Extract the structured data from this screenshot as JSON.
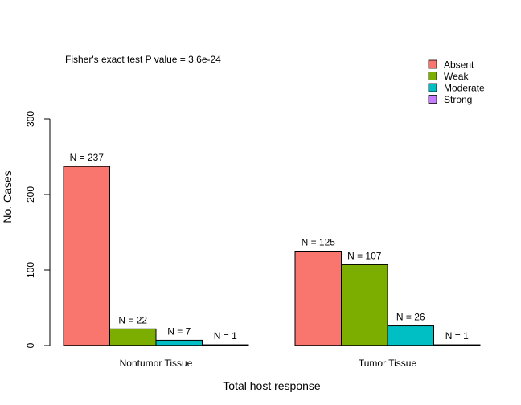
{
  "chart_data": {
    "type": "bar",
    "annotation": "Fisher's exact test P value = 3.6e-24",
    "xlabel": "Total host response",
    "ylabel": "No. Cases",
    "ylim": [
      0,
      300
    ],
    "yticks": [
      0,
      100,
      200,
      300
    ],
    "categories": [
      "Nontumor Tissue",
      "Tumor Tissue"
    ],
    "series": [
      {
        "name": "Absent",
        "color": "#f8766d",
        "values": [
          237,
          125
        ],
        "labels": [
          "N = 237",
          "N = 125"
        ]
      },
      {
        "name": "Weak",
        "color": "#7cae00",
        "values": [
          22,
          107
        ],
        "labels": [
          "N = 22",
          "N = 107"
        ]
      },
      {
        "name": "Moderate",
        "color": "#00bfc4",
        "values": [
          7,
          26
        ],
        "labels": [
          "N = 7",
          "N = 26"
        ]
      },
      {
        "name": "Strong",
        "color": "#c77cff",
        "values": [
          1,
          1
        ],
        "labels": [
          "N = 1",
          "N = 1"
        ]
      }
    ],
    "legend_position": "top-right",
    "grid": false
  }
}
